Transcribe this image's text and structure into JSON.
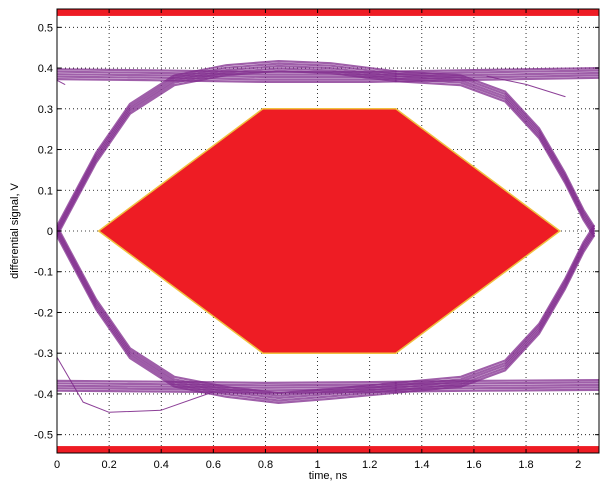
{
  "chart_data": {
    "type": "line",
    "title": "",
    "xlabel": "time, ns",
    "ylabel": "differential signal, V",
    "xlim": [
      0,
      2.08
    ],
    "ylim": [
      -0.545,
      0.545
    ],
    "grid": true,
    "x_ticks": [
      0,
      0.2,
      0.4,
      0.6,
      0.8,
      1,
      1.2,
      1.4,
      1.6,
      1.8,
      2
    ],
    "x_tick_labels": [
      "0",
      "0.2",
      "0.4",
      "0.6",
      "0.8",
      "1",
      "1.2",
      "1.4",
      "1.6",
      "1.8",
      "2"
    ],
    "y_ticks": [
      0.5,
      0.4,
      0.3,
      0.2,
      0.1,
      0,
      -0.1,
      -0.2,
      -0.3,
      -0.4,
      -0.5
    ],
    "y_tick_labels": [
      "0.5",
      "0.4",
      "0.3",
      "0.2",
      "0.1",
      "0",
      "-0.1",
      "-0.2",
      "-0.3",
      "-0.4",
      "-0.5"
    ],
    "eye_mask": {
      "shape": "hexagon",
      "color": "#ee1c24",
      "edge_color": "#f0c040",
      "vertices": [
        [
          0.16,
          0
        ],
        [
          0.79,
          0.3
        ],
        [
          1.3,
          0.3
        ],
        [
          1.93,
          0
        ],
        [
          1.3,
          -0.3
        ],
        [
          0.79,
          -0.3
        ]
      ]
    },
    "limit_bands": [
      {
        "from": 0.528,
        "to": 0.545,
        "color": "#ee1c24"
      },
      {
        "from": -0.545,
        "to": -0.528,
        "color": "#ee1c24"
      }
    ],
    "trace_color": "#7f2a8c",
    "traces": {
      "upper_rail": [
        [
          0,
          0.385
        ],
        [
          0.4,
          0.382
        ],
        [
          0.8,
          0.378
        ],
        [
          1.2,
          0.378
        ],
        [
          1.6,
          0.383
        ],
        [
          2.08,
          0.388
        ]
      ],
      "lower_rail": [
        [
          0,
          -0.38
        ],
        [
          0.4,
          -0.382
        ],
        [
          0.8,
          -0.385
        ],
        [
          1.2,
          -0.383
        ],
        [
          1.6,
          -0.38
        ],
        [
          2.08,
          -0.378
        ]
      ],
      "rising_left": [
        [
          0,
          0
        ],
        [
          0.05,
          0.06
        ],
        [
          0.15,
          0.18
        ],
        [
          0.28,
          0.3
        ],
        [
          0.45,
          0.37
        ],
        [
          0.65,
          0.395
        ],
        [
          0.85,
          0.405
        ],
        [
          1.05,
          0.4
        ],
        [
          1.3,
          0.38
        ]
      ],
      "falling_left": [
        [
          0,
          0
        ],
        [
          0.05,
          -0.06
        ],
        [
          0.15,
          -0.18
        ],
        [
          0.28,
          -0.3
        ],
        [
          0.45,
          -0.37
        ],
        [
          0.65,
          -0.395
        ],
        [
          0.85,
          -0.41
        ],
        [
          1.05,
          -0.4
        ],
        [
          1.3,
          -0.385
        ]
      ],
      "falling_right": [
        [
          1.3,
          0.38
        ],
        [
          1.55,
          0.37
        ],
        [
          1.72,
          0.33
        ],
        [
          1.85,
          0.24
        ],
        [
          1.95,
          0.13
        ],
        [
          2.02,
          0.04
        ],
        [
          2.06,
          0
        ]
      ],
      "rising_right": [
        [
          1.3,
          -0.385
        ],
        [
          1.55,
          -0.37
        ],
        [
          1.72,
          -0.33
        ],
        [
          1.85,
          -0.24
        ],
        [
          1.95,
          -0.13
        ],
        [
          2.02,
          -0.04
        ],
        [
          2.06,
          0
        ]
      ],
      "stray_upper": [
        [
          0,
          0.37
        ],
        [
          0.03,
          0.36
        ]
      ],
      "stray_lower": [
        [
          0,
          -0.31
        ],
        [
          0.1,
          -0.42
        ],
        [
          0.2,
          -0.445
        ],
        [
          0.4,
          -0.44
        ],
        [
          0.6,
          -0.395
        ]
      ],
      "stray_right": [
        [
          1.65,
          0.38
        ],
        [
          1.8,
          0.36
        ],
        [
          1.95,
          0.33
        ]
      ]
    }
  }
}
